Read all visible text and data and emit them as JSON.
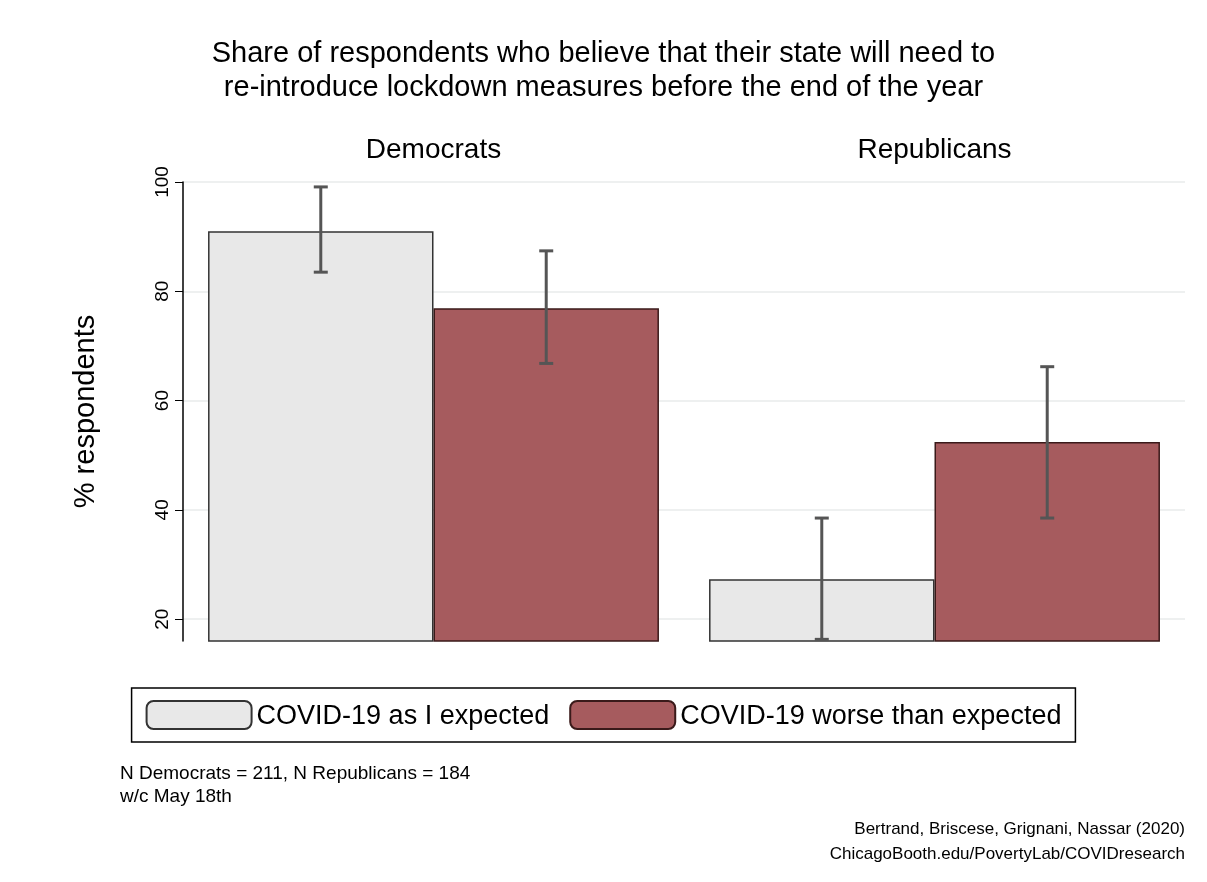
{
  "chart_data": {
    "type": "bar",
    "title": "Share of respondents who believe that their state will need to\nre-introduce lockdown measures before the end of the year",
    "ylabel": "% respondents",
    "categories": [
      "Democrats",
      "Republicans"
    ],
    "ylim": [
      16,
      100
    ],
    "yticks": [
      20,
      40,
      60,
      80,
      100
    ],
    "grid": "y",
    "legend": "bottom",
    "series": [
      {
        "name": "COVID-19 as I expected",
        "color": "#e8e8e8",
        "values": [
          91.0,
          27.3
        ],
        "errors": [
          [
            83.5,
            99.1
          ],
          [
            16.3,
            38.5
          ]
        ]
      },
      {
        "name": "COVID-19 worse than expected",
        "color": "#a65b5e",
        "values": [
          76.9,
          52.4
        ],
        "errors": [
          [
            66.8,
            87.4
          ],
          [
            38.5,
            66.2
          ]
        ]
      }
    ],
    "annotations": [
      "N Democrats = 211, N Republicans = 184",
      "w/c May 18th",
      "Bertrand, Briscese, Grignani, Nassar (2020)",
      "ChicagoBooth.edu/PovertyLab/COVIDresearch"
    ]
  }
}
